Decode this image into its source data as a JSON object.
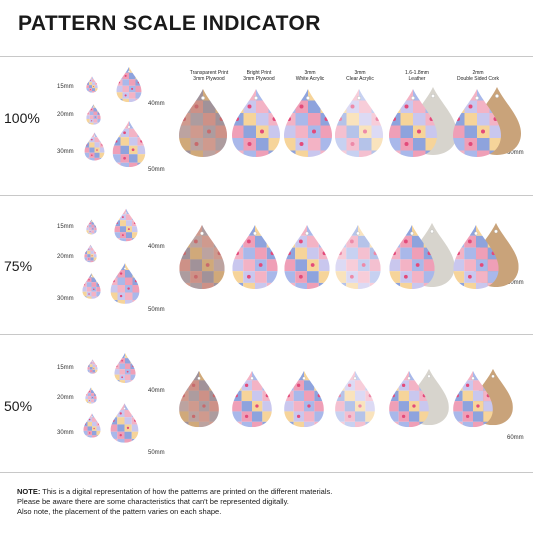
{
  "title": "PATTERN SCALE INDICATOR",
  "sections": [
    {
      "scale": "100%"
    },
    {
      "scale": "75%"
    },
    {
      "scale": "50%"
    }
  ],
  "sizes": {
    "s15": "15mm",
    "s20": "20mm",
    "s30": "30mm",
    "s40": "40mm",
    "s50": "50mm"
  },
  "materials": [
    {
      "line1": "Transparent Print",
      "line2": "3mm Plywood"
    },
    {
      "line1": "Bright Print",
      "line2": "3mm Plywood"
    },
    {
      "line1": "3mm",
      "line2": "White Acrylic"
    },
    {
      "line1": "3mm",
      "line2": "Clear Acrylic"
    },
    {
      "line1": "1.6-1.8mm",
      "line2": "Leather"
    },
    {
      "line1": "2mm",
      "line2": "Double Sided Cork"
    }
  ],
  "sample_size": "60mm",
  "note": {
    "label": "NOTE:",
    "line1": "This is a digital representation of how the patterns are printed on the different materials.",
    "line2": "Please be aware there are some characteristics that can't be represented digitally.",
    "line3": "Also note, the placement of the pattern varies on each shape."
  },
  "colors": {
    "wood": "#b08561",
    "cork": "#c9a37a",
    "leather": "#d7d4cd",
    "pink": "#ef9fb7",
    "blue": "#8ea3dd",
    "yellow": "#f6d49a",
    "lavender": "#c9c7ee"
  }
}
